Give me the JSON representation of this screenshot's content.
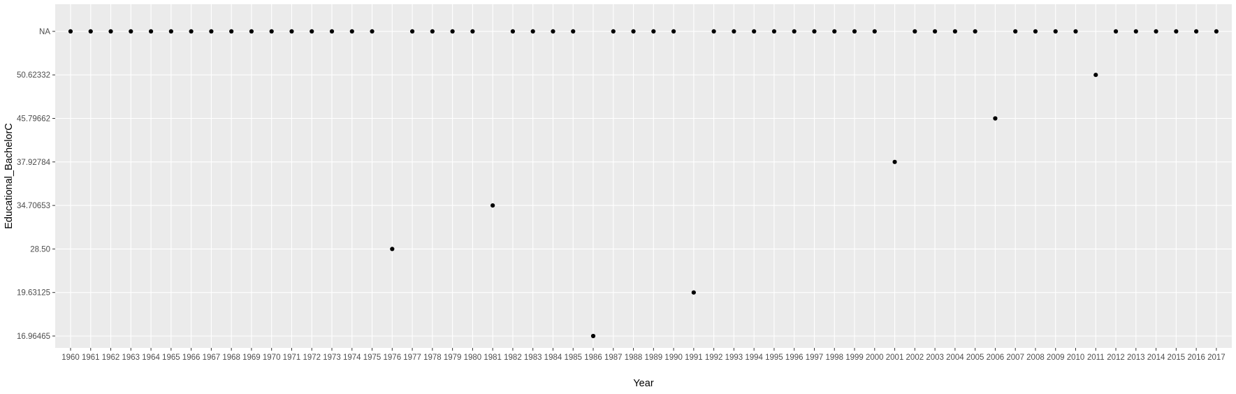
{
  "chart_data": {
    "type": "scatter",
    "title": "",
    "xlabel": "Year",
    "ylabel": "Educational_BachelorC",
    "x_axis_type": "categorical",
    "y_axis_type": "categorical",
    "categories": [
      "1960",
      "1961",
      "1962",
      "1963",
      "1964",
      "1965",
      "1966",
      "1967",
      "1968",
      "1969",
      "1970",
      "1971",
      "1972",
      "1973",
      "1974",
      "1975",
      "1976",
      "1977",
      "1978",
      "1979",
      "1980",
      "1981",
      "1982",
      "1983",
      "1984",
      "1985",
      "1986",
      "1987",
      "1988",
      "1989",
      "1990",
      "1991",
      "1992",
      "1993",
      "1994",
      "1995",
      "1996",
      "1997",
      "1998",
      "1999",
      "2000",
      "2001",
      "2002",
      "2003",
      "2004",
      "2005",
      "2006",
      "2007",
      "2008",
      "2009",
      "2010",
      "2011",
      "2012",
      "2013",
      "2014",
      "2015",
      "2016",
      "2017"
    ],
    "y_levels": [
      "16.96465",
      "19.63125",
      "28.50",
      "34.70653",
      "37.92784",
      "45.79662",
      "50.62332",
      "NA"
    ],
    "points": [
      {
        "x": "1960",
        "y": "NA"
      },
      {
        "x": "1961",
        "y": "NA"
      },
      {
        "x": "1962",
        "y": "NA"
      },
      {
        "x": "1963",
        "y": "NA"
      },
      {
        "x": "1964",
        "y": "NA"
      },
      {
        "x": "1965",
        "y": "NA"
      },
      {
        "x": "1966",
        "y": "NA"
      },
      {
        "x": "1967",
        "y": "NA"
      },
      {
        "x": "1968",
        "y": "NA"
      },
      {
        "x": "1969",
        "y": "NA"
      },
      {
        "x": "1970",
        "y": "NA"
      },
      {
        "x": "1971",
        "y": "NA"
      },
      {
        "x": "1972",
        "y": "NA"
      },
      {
        "x": "1973",
        "y": "NA"
      },
      {
        "x": "1974",
        "y": "NA"
      },
      {
        "x": "1975",
        "y": "NA"
      },
      {
        "x": "1976",
        "y": "28.50"
      },
      {
        "x": "1977",
        "y": "NA"
      },
      {
        "x": "1978",
        "y": "NA"
      },
      {
        "x": "1979",
        "y": "NA"
      },
      {
        "x": "1980",
        "y": "NA"
      },
      {
        "x": "1981",
        "y": "34.70653"
      },
      {
        "x": "1982",
        "y": "NA"
      },
      {
        "x": "1983",
        "y": "NA"
      },
      {
        "x": "1984",
        "y": "NA"
      },
      {
        "x": "1985",
        "y": "NA"
      },
      {
        "x": "1986",
        "y": "16.96465"
      },
      {
        "x": "1987",
        "y": "NA"
      },
      {
        "x": "1988",
        "y": "NA"
      },
      {
        "x": "1989",
        "y": "NA"
      },
      {
        "x": "1990",
        "y": "NA"
      },
      {
        "x": "1991",
        "y": "19.63125"
      },
      {
        "x": "1992",
        "y": "NA"
      },
      {
        "x": "1993",
        "y": "NA"
      },
      {
        "x": "1994",
        "y": "NA"
      },
      {
        "x": "1995",
        "y": "NA"
      },
      {
        "x": "1996",
        "y": "NA"
      },
      {
        "x": "1997",
        "y": "NA"
      },
      {
        "x": "1998",
        "y": "NA"
      },
      {
        "x": "1999",
        "y": "NA"
      },
      {
        "x": "2000",
        "y": "NA"
      },
      {
        "x": "2001",
        "y": "37.92784"
      },
      {
        "x": "2002",
        "y": "NA"
      },
      {
        "x": "2003",
        "y": "NA"
      },
      {
        "x": "2004",
        "y": "NA"
      },
      {
        "x": "2005",
        "y": "NA"
      },
      {
        "x": "2006",
        "y": "45.79662"
      },
      {
        "x": "2007",
        "y": "NA"
      },
      {
        "x": "2008",
        "y": "NA"
      },
      {
        "x": "2009",
        "y": "NA"
      },
      {
        "x": "2010",
        "y": "NA"
      },
      {
        "x": "2011",
        "y": "50.62332"
      },
      {
        "x": "2012",
        "y": "NA"
      },
      {
        "x": "2013",
        "y": "NA"
      },
      {
        "x": "2014",
        "y": "NA"
      },
      {
        "x": "2015",
        "y": "NA"
      },
      {
        "x": "2016",
        "y": "NA"
      },
      {
        "x": "2017",
        "y": "NA"
      }
    ],
    "grid": true,
    "legend": "none",
    "colors": {
      "panel_background": "#ebebeb",
      "grid_major": "#ffffff",
      "point": "#000000",
      "tick_text": "#4d4d4d",
      "axis_title": "#000000"
    }
  }
}
